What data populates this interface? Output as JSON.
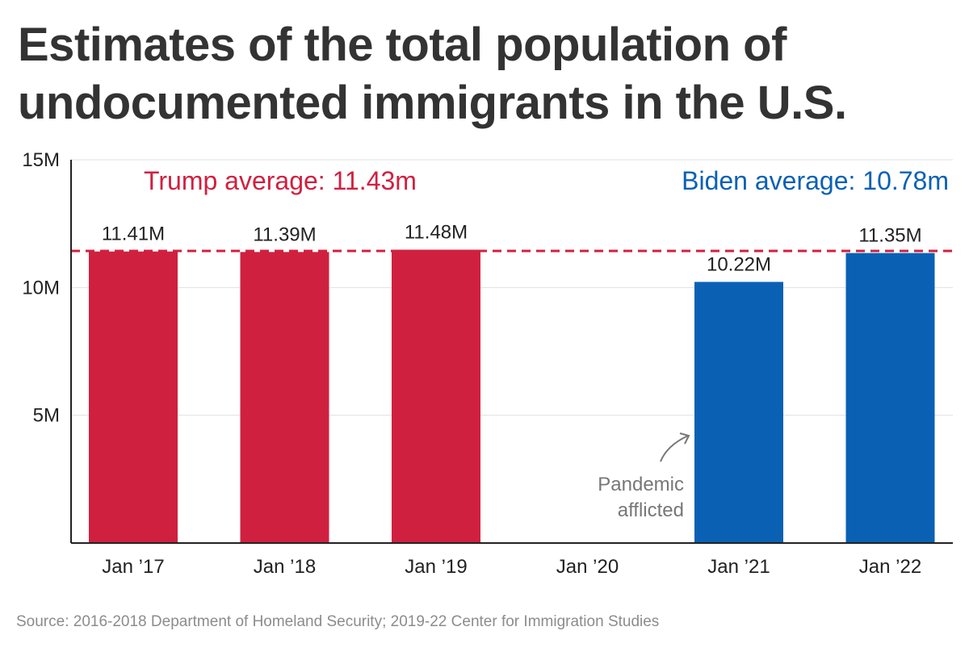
{
  "title": "Estimates of the total population of undocumented immigrants in the U.S.",
  "source": "Source: 2016-2018 Department of Homeland Security; 2019-22 Center for Immigration Studies",
  "colors": {
    "trump": "#d0203f",
    "biden": "#0a61b4",
    "annotation": "#777777",
    "grid": "#e0e0e0",
    "axis": "#222222"
  },
  "chart_data": {
    "type": "bar",
    "categories": [
      "Jan ’17",
      "Jan ’18",
      "Jan ’19",
      "Jan ’20",
      "Jan ’21",
      "Jan ’22"
    ],
    "values": [
      11.41,
      11.39,
      11.48,
      null,
      10.22,
      11.35
    ],
    "value_labels": [
      "11.41M",
      "11.39M",
      "11.48M",
      "",
      "10.22M",
      "11.35M"
    ],
    "bar_groups": [
      "trump",
      "trump",
      "trump",
      "",
      "biden",
      "biden"
    ],
    "unit": "millions",
    "ylim": [
      0,
      15
    ],
    "yticks": [
      {
        "value": 5,
        "label": "5M"
      },
      {
        "value": 10,
        "label": "10M"
      },
      {
        "value": 15,
        "label": "15M"
      }
    ],
    "grid": true,
    "reference_line": {
      "value": 11.43,
      "style": "dashed",
      "group": "trump"
    },
    "annotations": [
      {
        "text": "Trump average: 11.43m",
        "group": "trump",
        "position": "top-left"
      },
      {
        "text": "Biden average: 10.78m",
        "group": "biden",
        "position": "top-right"
      }
    ],
    "note": {
      "lines": [
        "Pandemic",
        "afflicted"
      ],
      "points_to": "Jan ’21"
    }
  }
}
